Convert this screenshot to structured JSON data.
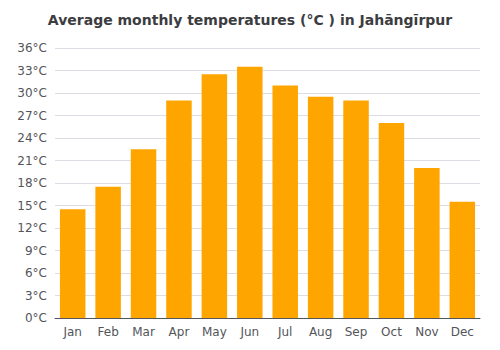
{
  "chart_data": {
    "type": "bar",
    "title": "Average monthly temperatures (°C ) in Jahāngīrpur",
    "categories": [
      "Jan",
      "Feb",
      "Mar",
      "Apr",
      "May",
      "Jun",
      "Jul",
      "Aug",
      "Sep",
      "Oct",
      "Nov",
      "Dec"
    ],
    "values": [
      14.5,
      17.5,
      22.5,
      29.0,
      32.5,
      33.5,
      31.0,
      29.5,
      29.0,
      26.0,
      20.0,
      15.5
    ],
    "color": "#FFA500",
    "ylim": [
      0,
      36
    ],
    "yticks": [
      {
        "value": 0,
        "label": "0°C"
      },
      {
        "value": 3,
        "label": "3°C"
      },
      {
        "value": 6,
        "label": "6°C"
      },
      {
        "value": 9,
        "label": "9°C"
      },
      {
        "value": 12,
        "label": "12°C"
      },
      {
        "value": 15,
        "label": "15°C"
      },
      {
        "value": 18,
        "label": "18°C"
      },
      {
        "value": 21,
        "label": "21°C"
      },
      {
        "value": 24,
        "label": "24°C"
      },
      {
        "value": 27,
        "label": "27°C"
      },
      {
        "value": 30,
        "label": "30°C"
      },
      {
        "value": 33,
        "label": "33°C"
      },
      {
        "value": 36,
        "label": "36°C"
      }
    ],
    "grid": true
  }
}
